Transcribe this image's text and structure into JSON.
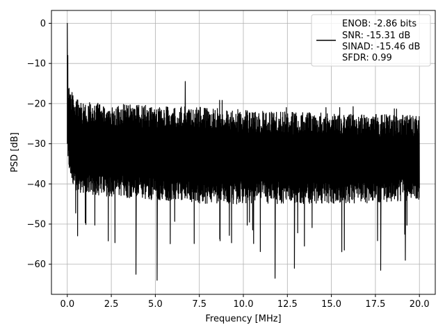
{
  "chart_data": {
    "type": "line",
    "title": "",
    "xlabel": "Frequency [MHz]",
    "ylabel": "PSD [dB]",
    "xlim": [
      -0.9,
      20.9
    ],
    "ylim": [
      -67.5,
      3.2
    ],
    "x_ticks": [
      0.0,
      2.5,
      5.0,
      7.5,
      10.0,
      12.5,
      15.0,
      17.5,
      20.0
    ],
    "x_tick_labels": [
      "0.0",
      "2.5",
      "5.0",
      "7.5",
      "10.0",
      "12.5",
      "15.0",
      "17.5",
      "20.0"
    ],
    "y_ticks": [
      0,
      -10,
      -20,
      -30,
      -40,
      -50,
      -60
    ],
    "y_tick_labels": [
      "0",
      "−10",
      "−20",
      "−30",
      "−40",
      "−50",
      "−60"
    ],
    "grid": true,
    "legend_position": "top-right",
    "line_color": "#000000",
    "series": [
      {
        "values_summary": "dense noisy PSD trace",
        "peak": {
          "x": 0.0,
          "y": 0.0
        },
        "upper_envelope": [
          [
            0.0,
            0.0
          ],
          [
            0.05,
            -10
          ],
          [
            0.1,
            -14
          ],
          [
            0.3,
            -16
          ],
          [
            0.5,
            -19
          ],
          [
            1.0,
            -18
          ],
          [
            2.0,
            -17
          ],
          [
            3.5,
            -17.5
          ],
          [
            5.0,
            -18
          ],
          [
            6.5,
            -17
          ],
          [
            6.7,
            -14.5
          ],
          [
            7.0,
            -18
          ],
          [
            8.0,
            -19
          ],
          [
            10.0,
            -19.5
          ],
          [
            12.0,
            -21
          ],
          [
            14.0,
            -21
          ],
          [
            16.0,
            -21
          ],
          [
            17.9,
            -19
          ],
          [
            18.0,
            -21
          ],
          [
            20.0,
            -22
          ]
        ],
        "lower_envelope": [
          [
            0.0,
            -30
          ],
          [
            0.1,
            -36
          ],
          [
            0.5,
            -42
          ],
          [
            1.0,
            -44
          ],
          [
            3.0,
            -46
          ],
          [
            3.9,
            -62.5
          ],
          [
            5.1,
            -64
          ],
          [
            6.0,
            -50
          ],
          [
            8.0,
            -54
          ],
          [
            10.0,
            -52
          ],
          [
            11.8,
            -63.5
          ],
          [
            12.9,
            -61
          ],
          [
            15.0,
            -55
          ],
          [
            17.8,
            -61.5
          ],
          [
            19.2,
            -59
          ],
          [
            20.0,
            -50
          ]
        ],
        "mean_level_db": -32
      }
    ],
    "legend_entries": [
      "ENOB: -2.86 bits",
      "SNR: -15.31 dB",
      "SINAD: -15.46 dB",
      "SFDR: 0.99"
    ]
  }
}
